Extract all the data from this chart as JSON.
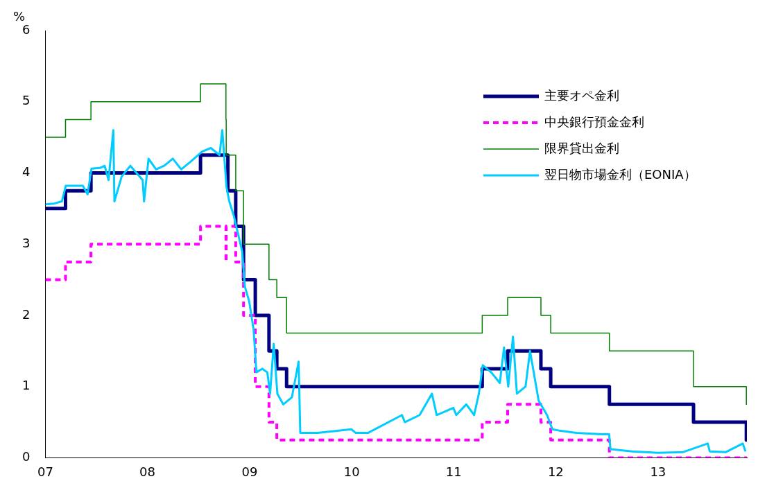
{
  "chart_data": {
    "type": "step",
    "ylabel": "%",
    "xlim": [
      "2007-01-01",
      "2013-11-15"
    ],
    "ylim": [
      0,
      6
    ],
    "yticks": [
      0,
      1,
      2,
      3,
      4,
      5,
      6
    ],
    "xticks": [
      {
        "value": "2007-01-01",
        "label": "07"
      },
      {
        "value": "2008-01-01",
        "label": "08"
      },
      {
        "value": "2009-01-01",
        "label": "09"
      },
      {
        "value": "2010-01-01",
        "label": "10"
      },
      {
        "value": "2011-01-01",
        "label": "11"
      },
      {
        "value": "2012-01-01",
        "label": "12"
      },
      {
        "value": "2013-01-01",
        "label": "13"
      }
    ],
    "grid": false,
    "legend": "top right",
    "series": [
      {
        "name": "主要オペ金利",
        "color": "#000080",
        "line_style": "solid",
        "x": [
          "2007-01-01",
          "2007-03-14",
          "2007-06-13",
          "2008-07-09",
          "2008-10-15",
          "2008-11-12",
          "2008-12-10",
          "2009-01-21",
          "2009-03-11",
          "2009-04-08",
          "2009-05-13",
          "2011-04-13",
          "2011-07-13",
          "2011-11-09",
          "2011-12-14",
          "2012-07-11",
          "2013-05-08",
          "2013-11-13",
          "2013-11-15"
        ],
        "values": [
          3.5,
          3.75,
          4,
          4.25,
          3.75,
          3.25,
          2.5,
          2,
          1.5,
          1.25,
          1,
          1.25,
          1.5,
          1.25,
          1,
          0.75,
          0.5,
          0.25,
          0.25
        ]
      },
      {
        "name": "中央銀行預金金利",
        "color": "#ff00ff",
        "line_style": "dashed",
        "x": [
          "2007-01-01",
          "2007-03-14",
          "2007-06-13",
          "2008-07-09",
          "2008-10-08",
          "2008-10-09",
          "2008-11-12",
          "2008-12-10",
          "2009-01-21",
          "2009-03-11",
          "2009-04-08",
          "2011-04-13",
          "2011-07-13",
          "2011-11-09",
          "2011-12-14",
          "2012-07-11",
          "2013-11-15"
        ],
        "values": [
          2.5,
          2.75,
          3,
          3.25,
          2.75,
          3.25,
          2.75,
          2,
          1,
          0.5,
          0.25,
          0.5,
          0.75,
          0.5,
          0.25,
          0,
          0
        ]
      },
      {
        "name": "限界貸出金利",
        "color": "#008000",
        "line_style": "solid",
        "x": [
          "2007-01-01",
          "2007-03-14",
          "2007-06-13",
          "2008-07-09",
          "2008-10-08",
          "2008-10-09",
          "2008-11-12",
          "2008-12-10",
          "2009-03-11",
          "2009-04-08",
          "2009-05-13",
          "2011-04-13",
          "2011-07-13",
          "2011-11-09",
          "2011-12-14",
          "2012-07-11",
          "2013-05-08",
          "2013-11-13",
          "2013-11-15"
        ],
        "values": [
          4.5,
          4.75,
          5,
          5.25,
          4.75,
          4.25,
          3.75,
          3,
          2.5,
          2.25,
          1.75,
          2,
          2.25,
          2,
          1.75,
          1.5,
          1,
          0.75,
          0.75
        ]
      },
      {
        "name": "翌日物市場金利（EONIA）",
        "color": "#00ccff",
        "type": "line",
        "line_style": "solid",
        "x": [
          "2007-01-01",
          "2007-02-01",
          "2007-03-01",
          "2007-03-15",
          "2007-04-15",
          "2007-05-15",
          "2007-06-01",
          "2007-06-15",
          "2007-07-15",
          "2007-08-01",
          "2007-08-15",
          "2007-09-01",
          "2007-09-05",
          "2007-10-01",
          "2007-11-01",
          "2007-12-15",
          "2007-12-20",
          "2008-01-05",
          "2008-02-01",
          "2008-03-01",
          "2008-04-01",
          "2008-05-01",
          "2008-06-01",
          "2008-07-15",
          "2008-08-15",
          "2008-09-15",
          "2008-09-25",
          "2008-10-10",
          "2008-10-20",
          "2008-11-05",
          "2008-11-20",
          "2008-12-05",
          "2008-12-15",
          "2008-12-30",
          "2009-01-15",
          "2009-01-25",
          "2009-02-15",
          "2009-03-05",
          "2009-03-15",
          "2009-03-28",
          "2009-04-10",
          "2009-05-01",
          "2009-06-01",
          "2009-06-25",
          "2009-07-01",
          "2009-09-01",
          "2009-12-31",
          "2010-01-15",
          "2010-03-01",
          "2010-06-30",
          "2010-07-10",
          "2010-09-01",
          "2010-10-15",
          "2010-11-01",
          "2010-12-31",
          "2011-01-10",
          "2011-02-15",
          "2011-03-15",
          "2011-04-01",
          "2011-04-15",
          "2011-05-15",
          "2011-06-15",
          "2011-06-30",
          "2011-07-15",
          "2011-08-01",
          "2011-08-15",
          "2011-09-15",
          "2011-10-01",
          "2011-11-01",
          "2011-12-01",
          "2011-12-20",
          "2012-01-15",
          "2012-03-15",
          "2012-06-15",
          "2012-07-10",
          "2012-07-15",
          "2012-10-01",
          "2013-01-01",
          "2013-04-01",
          "2013-06-28",
          "2013-07-05",
          "2013-09-01",
          "2013-10-31",
          "2013-11-10"
        ],
        "values": [
          3.56,
          3.57,
          3.6,
          3.82,
          3.82,
          3.82,
          3.7,
          4.06,
          4.07,
          4.1,
          3.9,
          4.6,
          3.6,
          3.95,
          4.1,
          3.9,
          3.6,
          4.2,
          4.05,
          4.1,
          4.2,
          4.05,
          4.15,
          4.3,
          4.35,
          4.25,
          4.6,
          3.8,
          3.6,
          3.4,
          3.15,
          2.9,
          2.4,
          2.2,
          1.8,
          1.2,
          1.25,
          1.2,
          0.9,
          1.6,
          0.9,
          0.75,
          0.85,
          1.35,
          0.35,
          0.35,
          0.4,
          0.35,
          0.35,
          0.6,
          0.5,
          0.6,
          0.9,
          0.6,
          0.7,
          0.6,
          0.75,
          0.6,
          0.9,
          1.3,
          1.2,
          1.05,
          1.55,
          1.0,
          1.7,
          0.9,
          1.0,
          1.5,
          0.8,
          0.6,
          0.4,
          0.38,
          0.35,
          0.33,
          0.33,
          0.12,
          0.09,
          0.07,
          0.08,
          0.2,
          0.09,
          0.08,
          0.2,
          0.09
        ]
      }
    ]
  }
}
